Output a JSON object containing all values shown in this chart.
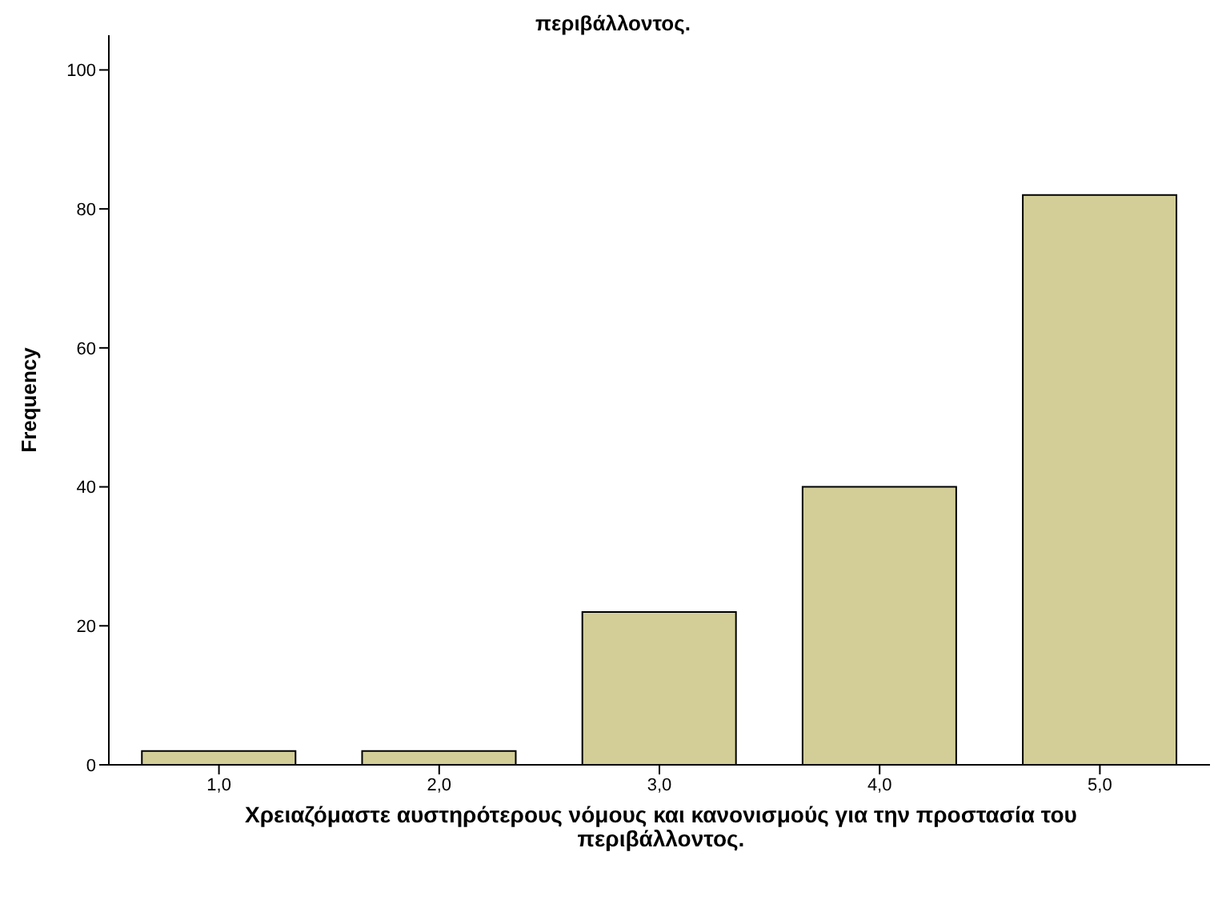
{
  "chart_data": {
    "type": "bar",
    "title": "περιβάλλοντος.",
    "xlabel": "Χρειαζόμαστε αυστηρότερους νόμους και κανονισμούς για την προστασία του περιβάλλοντος.",
    "ylabel": "Frequency",
    "categories": [
      "1,0",
      "2,0",
      "3,0",
      "4,0",
      "5,0"
    ],
    "values": [
      2,
      2,
      22,
      40,
      82
    ],
    "color": "#d3ce97",
    "ylim": [
      0,
      105
    ],
    "yticks": [
      0,
      20,
      40,
      60,
      80,
      100
    ],
    "grid": false,
    "legend": false
  }
}
